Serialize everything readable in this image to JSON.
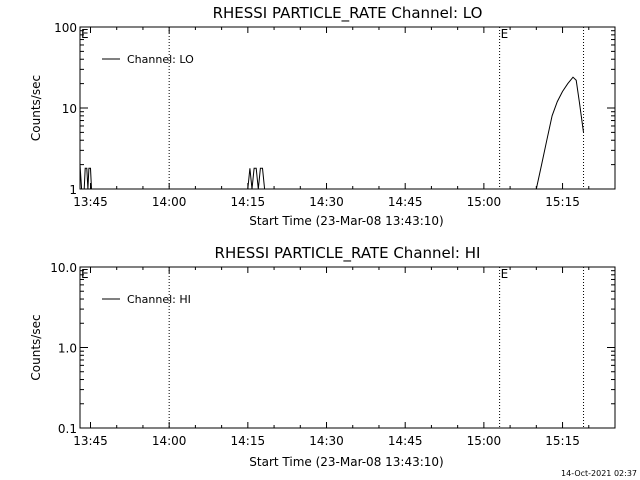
{
  "footer_timestamp": "14-Oct-2021 02:37",
  "chart_data": [
    {
      "type": "line",
      "title": "RHESSI PARTICLE_RATE Channel: LO",
      "xlabel": "Start Time (23-Mar-08 13:43:10)",
      "ylabel": "Counts/sec",
      "yscale": "log",
      "ylim": [
        1,
        100
      ],
      "xlim": [
        "13:43",
        "15:25"
      ],
      "xticks": [
        "13:45",
        "14:00",
        "14:15",
        "14:30",
        "14:45",
        "15:00",
        "15:15"
      ],
      "yticks": [
        "1",
        "10",
        "100"
      ],
      "legend": {
        "placement": "top-left",
        "entries": [
          "Channel: LO"
        ]
      },
      "vlines": [
        {
          "x": "14:00",
          "label": ""
        },
        {
          "x": "15:03",
          "label": "E"
        },
        {
          "x": "15:19",
          "label": ""
        }
      ],
      "left_marker": "E",
      "series": [
        {
          "name": "Channel: LO",
          "x": [
            "13:43",
            "13:43.3",
            "13:43.6",
            "13:43.8",
            "13:44",
            "13:44.3",
            "13:44.5",
            "13:44.7",
            "13:45",
            "13:45.2",
            "14:15",
            "14:15.4",
            "14:15.8",
            "14:16.2",
            "14:16.6",
            "14:17",
            "14:17.4",
            "14:17.8",
            "14:18.2",
            "14:18.6",
            "15:10",
            "15:11",
            "15:12",
            "15:13",
            "15:14",
            "15:15",
            "15:16",
            "15:17",
            "15:17.6",
            "15:18.2",
            "15:19"
          ],
          "y": [
            2,
            1,
            1,
            1,
            1.8,
            1.8,
            1,
            1.8,
            1.8,
            1,
            1,
            1.8,
            1,
            1.8,
            1.8,
            1,
            1.8,
            1.8,
            1,
            1,
            1,
            2,
            4,
            8,
            12,
            16,
            20,
            24,
            22,
            12,
            5
          ]
        }
      ]
    },
    {
      "type": "line",
      "title": "RHESSI PARTICLE_RATE Channel: HI",
      "xlabel": "Start Time (23-Mar-08 13:43:10)",
      "ylabel": "Counts/sec",
      "yscale": "log",
      "ylim": [
        0.1,
        10
      ],
      "xlim": [
        "13:43",
        "15:25"
      ],
      "xticks": [
        "13:45",
        "14:00",
        "14:15",
        "14:30",
        "14:45",
        "15:00",
        "15:15"
      ],
      "yticks": [
        "0.1",
        "1.0",
        "10.0"
      ],
      "legend": {
        "placement": "top-left",
        "entries": [
          "Channel: HI"
        ]
      },
      "vlines": [
        {
          "x": "14:00",
          "label": ""
        },
        {
          "x": "15:03",
          "label": "E"
        },
        {
          "x": "15:19",
          "label": ""
        }
      ],
      "left_marker": "E",
      "series": [
        {
          "name": "Channel: HI",
          "x": [],
          "y": []
        }
      ]
    }
  ]
}
